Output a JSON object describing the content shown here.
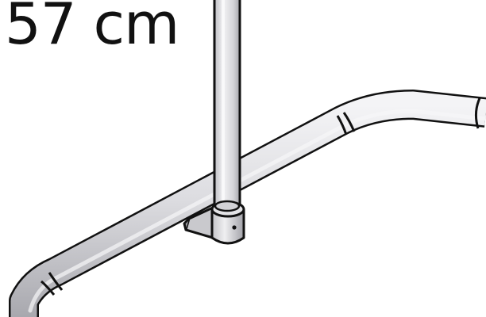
{
  "label": {
    "measurement": "57 cm"
  },
  "colors": {
    "outline": "#111111",
    "tube": "#d9d9dc",
    "tube_highlight": "#f2f2f4",
    "tube_shadow": "#a9a9ae",
    "background": "#ffffff"
  }
}
